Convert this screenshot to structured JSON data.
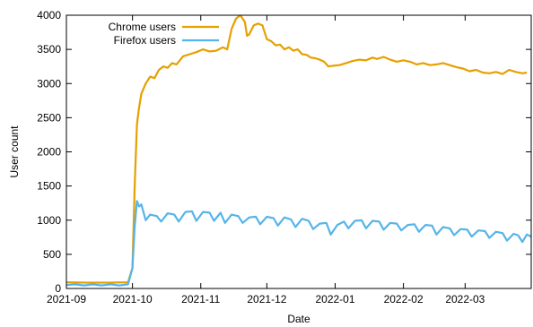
{
  "chart_data": {
    "type": "line",
    "xlabel": "Date",
    "ylabel": "User count",
    "xlim": [
      "2021-09-01",
      "2022-03-31"
    ],
    "ylim": [
      0,
      4000
    ],
    "x_ticks": [
      {
        "date": "2021-09-01",
        "label": "2021-09"
      },
      {
        "date": "2021-10-01",
        "label": "2021-10"
      },
      {
        "date": "2021-11-01",
        "label": "2021-11"
      },
      {
        "date": "2021-12-01",
        "label": "2021-12"
      },
      {
        "date": "2022-01-01",
        "label": "2022-01"
      },
      {
        "date": "2022-02-01",
        "label": "2022-02"
      },
      {
        "date": "2022-03-01",
        "label": "2022-03"
      }
    ],
    "y_ticks": [
      0,
      500,
      1000,
      1500,
      2000,
      2500,
      3000,
      3500,
      4000
    ],
    "legend_position": "top-left",
    "grid": false,
    "series": [
      {
        "name": "Chrome users",
        "color": "#e6a000",
        "points": [
          [
            "2021-09-01",
            90
          ],
          [
            "2021-09-10",
            85
          ],
          [
            "2021-09-20",
            85
          ],
          [
            "2021-09-29",
            90
          ],
          [
            "2021-10-01",
            300
          ],
          [
            "2021-10-02",
            1500
          ],
          [
            "2021-10-03",
            2400
          ],
          [
            "2021-10-04",
            2650
          ],
          [
            "2021-10-05",
            2850
          ],
          [
            "2021-10-07",
            3000
          ],
          [
            "2021-10-09",
            3100
          ],
          [
            "2021-10-11",
            3080
          ],
          [
            "2021-10-13",
            3200
          ],
          [
            "2021-10-15",
            3250
          ],
          [
            "2021-10-17",
            3230
          ],
          [
            "2021-10-19",
            3300
          ],
          [
            "2021-10-21",
            3280
          ],
          [
            "2021-10-24",
            3400
          ],
          [
            "2021-10-27",
            3430
          ],
          [
            "2021-10-30",
            3460
          ],
          [
            "2021-11-02",
            3500
          ],
          [
            "2021-11-05",
            3470
          ],
          [
            "2021-11-08",
            3480
          ],
          [
            "2021-11-11",
            3530
          ],
          [
            "2021-11-13",
            3500
          ],
          [
            "2021-11-15",
            3800
          ],
          [
            "2021-11-17",
            3950
          ],
          [
            "2021-11-19",
            4000
          ],
          [
            "2021-11-21",
            3900
          ],
          [
            "2021-11-22",
            3700
          ],
          [
            "2021-11-23",
            3720
          ],
          [
            "2021-11-25",
            3850
          ],
          [
            "2021-11-27",
            3880
          ],
          [
            "2021-11-29",
            3850
          ],
          [
            "2021-12-01",
            3650
          ],
          [
            "2021-12-03",
            3620
          ],
          [
            "2021-12-05",
            3560
          ],
          [
            "2021-12-07",
            3570
          ],
          [
            "2021-12-09",
            3500
          ],
          [
            "2021-12-11",
            3530
          ],
          [
            "2021-12-13",
            3480
          ],
          [
            "2021-12-15",
            3500
          ],
          [
            "2021-12-17",
            3430
          ],
          [
            "2021-12-19",
            3420
          ],
          [
            "2021-12-21",
            3380
          ],
          [
            "2021-12-23",
            3370
          ],
          [
            "2021-12-25",
            3350
          ],
          [
            "2021-12-27",
            3320
          ],
          [
            "2021-12-29",
            3250
          ],
          [
            "2021-12-31",
            3260
          ],
          [
            "2022-01-03",
            3270
          ],
          [
            "2022-01-06",
            3300
          ],
          [
            "2022-01-09",
            3330
          ],
          [
            "2022-01-12",
            3350
          ],
          [
            "2022-01-15",
            3340
          ],
          [
            "2022-01-18",
            3380
          ],
          [
            "2022-01-20",
            3360
          ],
          [
            "2022-01-23",
            3390
          ],
          [
            "2022-01-26",
            3350
          ],
          [
            "2022-01-29",
            3320
          ],
          [
            "2022-02-01",
            3340
          ],
          [
            "2022-02-04",
            3320
          ],
          [
            "2022-02-07",
            3280
          ],
          [
            "2022-02-10",
            3300
          ],
          [
            "2022-02-13",
            3270
          ],
          [
            "2022-02-16",
            3280
          ],
          [
            "2022-02-19",
            3300
          ],
          [
            "2022-02-22",
            3270
          ],
          [
            "2022-02-25",
            3240
          ],
          [
            "2022-02-28",
            3220
          ],
          [
            "2022-03-03",
            3180
          ],
          [
            "2022-03-06",
            3200
          ],
          [
            "2022-03-09",
            3160
          ],
          [
            "2022-03-12",
            3150
          ],
          [
            "2022-03-15",
            3170
          ],
          [
            "2022-03-18",
            3140
          ],
          [
            "2022-03-21",
            3200
          ],
          [
            "2022-03-24",
            3170
          ],
          [
            "2022-03-27",
            3150
          ],
          [
            "2022-03-29",
            3160
          ]
        ]
      },
      {
        "name": "Firefox users",
        "color": "#56b4e9",
        "points": [
          [
            "2021-09-01",
            50
          ],
          [
            "2021-09-05",
            60
          ],
          [
            "2021-09-09",
            45
          ],
          [
            "2021-09-13",
            60
          ],
          [
            "2021-09-17",
            45
          ],
          [
            "2021-09-21",
            60
          ],
          [
            "2021-09-25",
            45
          ],
          [
            "2021-09-29",
            60
          ],
          [
            "2021-10-01",
            300
          ],
          [
            "2021-10-02",
            900
          ],
          [
            "2021-10-03",
            1280
          ],
          [
            "2021-10-04",
            1200
          ],
          [
            "2021-10-05",
            1230
          ],
          [
            "2021-10-07",
            1000
          ],
          [
            "2021-10-09",
            1080
          ],
          [
            "2021-10-12",
            1060
          ],
          [
            "2021-10-14",
            980
          ],
          [
            "2021-10-17",
            1100
          ],
          [
            "2021-10-20",
            1080
          ],
          [
            "2021-10-22",
            980
          ],
          [
            "2021-10-25",
            1120
          ],
          [
            "2021-10-28",
            1130
          ],
          [
            "2021-10-30",
            990
          ],
          [
            "2021-11-02",
            1120
          ],
          [
            "2021-11-05",
            1110
          ],
          [
            "2021-11-07",
            990
          ],
          [
            "2021-11-10",
            1110
          ],
          [
            "2021-11-12",
            960
          ],
          [
            "2021-11-15",
            1080
          ],
          [
            "2021-11-18",
            1060
          ],
          [
            "2021-11-20",
            960
          ],
          [
            "2021-11-23",
            1040
          ],
          [
            "2021-11-26",
            1050
          ],
          [
            "2021-11-28",
            940
          ],
          [
            "2021-12-01",
            1050
          ],
          [
            "2021-12-04",
            1030
          ],
          [
            "2021-12-06",
            920
          ],
          [
            "2021-12-09",
            1040
          ],
          [
            "2021-12-12",
            1010
          ],
          [
            "2021-12-14",
            900
          ],
          [
            "2021-12-17",
            1020
          ],
          [
            "2021-12-20",
            990
          ],
          [
            "2021-12-22",
            870
          ],
          [
            "2021-12-25",
            950
          ],
          [
            "2021-12-28",
            960
          ],
          [
            "2021-12-30",
            790
          ],
          [
            "2022-01-02",
            930
          ],
          [
            "2022-01-05",
            980
          ],
          [
            "2022-01-07",
            880
          ],
          [
            "2022-01-10",
            990
          ],
          [
            "2022-01-13",
            1000
          ],
          [
            "2022-01-15",
            880
          ],
          [
            "2022-01-18",
            990
          ],
          [
            "2022-01-21",
            980
          ],
          [
            "2022-01-23",
            860
          ],
          [
            "2022-01-26",
            960
          ],
          [
            "2022-01-29",
            950
          ],
          [
            "2022-01-31",
            850
          ],
          [
            "2022-02-03",
            930
          ],
          [
            "2022-02-06",
            940
          ],
          [
            "2022-02-08",
            830
          ],
          [
            "2022-02-11",
            930
          ],
          [
            "2022-02-14",
            920
          ],
          [
            "2022-02-16",
            790
          ],
          [
            "2022-02-19",
            900
          ],
          [
            "2022-02-22",
            880
          ],
          [
            "2022-02-24",
            780
          ],
          [
            "2022-02-27",
            870
          ],
          [
            "2022-03-02",
            860
          ],
          [
            "2022-03-04",
            760
          ],
          [
            "2022-03-07",
            850
          ],
          [
            "2022-03-10",
            840
          ],
          [
            "2022-03-12",
            740
          ],
          [
            "2022-03-15",
            830
          ],
          [
            "2022-03-18",
            810
          ],
          [
            "2022-03-20",
            700
          ],
          [
            "2022-03-23",
            800
          ],
          [
            "2022-03-25",
            780
          ],
          [
            "2022-03-27",
            680
          ],
          [
            "2022-03-29",
            790
          ],
          [
            "2022-03-31",
            760
          ]
        ]
      }
    ]
  }
}
